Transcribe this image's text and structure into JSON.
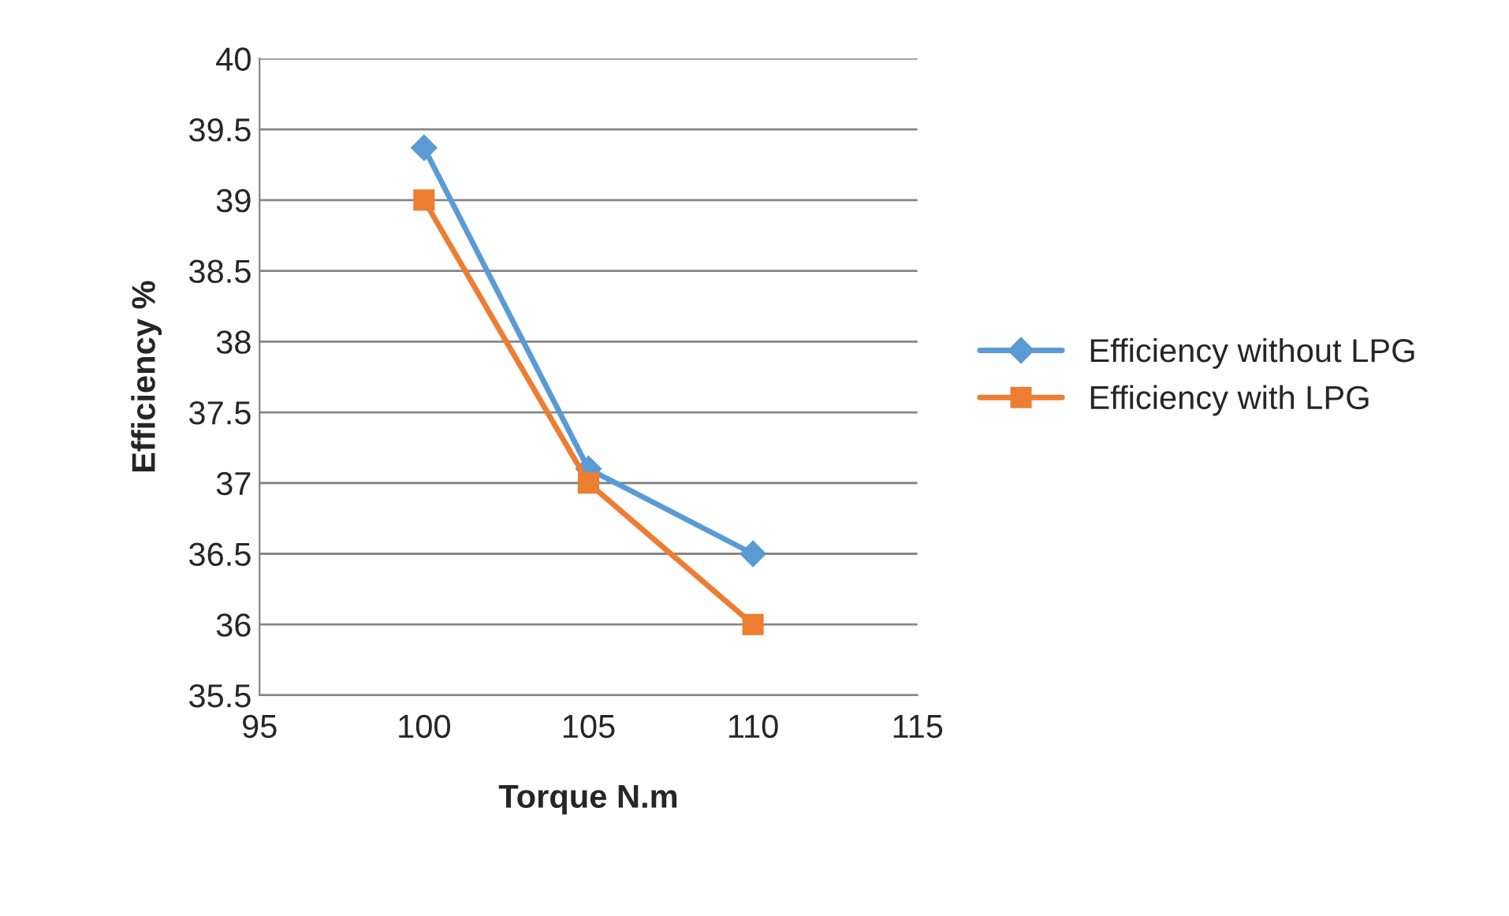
{
  "chart_data": {
    "type": "line",
    "xlabel": "Torque N.m",
    "ylabel": "Efficiency %",
    "xlim": [
      95,
      115
    ],
    "xticks": [
      95,
      100,
      105,
      110,
      115
    ],
    "ylim": [
      35.5,
      40
    ],
    "yticks": [
      35.5,
      36,
      36.5,
      37,
      37.5,
      38,
      38.5,
      39,
      39.5,
      40
    ],
    "grid": "y",
    "legend": "right",
    "line_style": "solid",
    "series": [
      {
        "name": "Efficiency without LPG",
        "color": "#5b9bd5",
        "marker": "diamond",
        "x": [
          100,
          105,
          110
        ],
        "values": [
          39.37,
          37.1,
          36.5
        ]
      },
      {
        "name": "Efficiency with LPG",
        "color": "#ed7d31",
        "marker": "square",
        "x": [
          100,
          105,
          110
        ],
        "values": [
          39.0,
          37.0,
          36.0
        ]
      }
    ]
  }
}
